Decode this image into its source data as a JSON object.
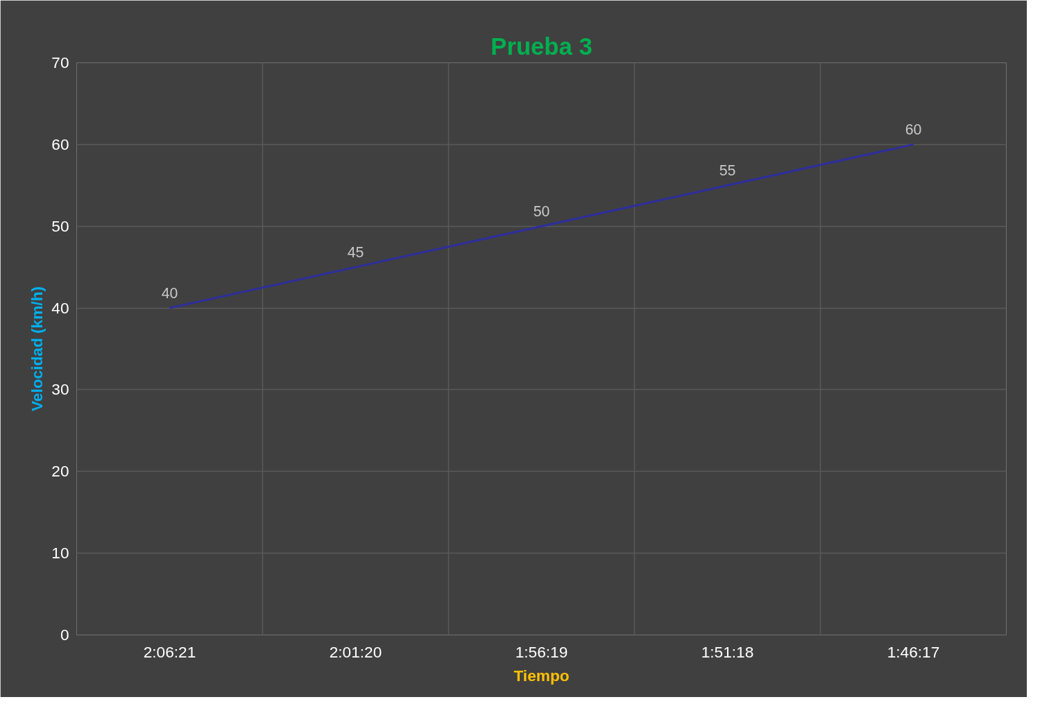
{
  "chart_data": {
    "type": "line",
    "title": "Prueba 3",
    "xlabel": "Tiempo",
    "ylabel": "Velocidad (km/h)",
    "categories": [
      "2:06:21",
      "2:01:20",
      "1:56:19",
      "1:51:18",
      "1:46:17"
    ],
    "series": [
      {
        "color": "#2e2e9e",
        "values": [
          40,
          45,
          50,
          55,
          60
        ]
      }
    ],
    "ylim": [
      0,
      70
    ],
    "yticks": [
      0,
      10,
      20,
      30,
      40,
      50,
      60,
      70
    ],
    "grid": true,
    "data_labels": true,
    "marker": "none",
    "line_style": "solid"
  }
}
